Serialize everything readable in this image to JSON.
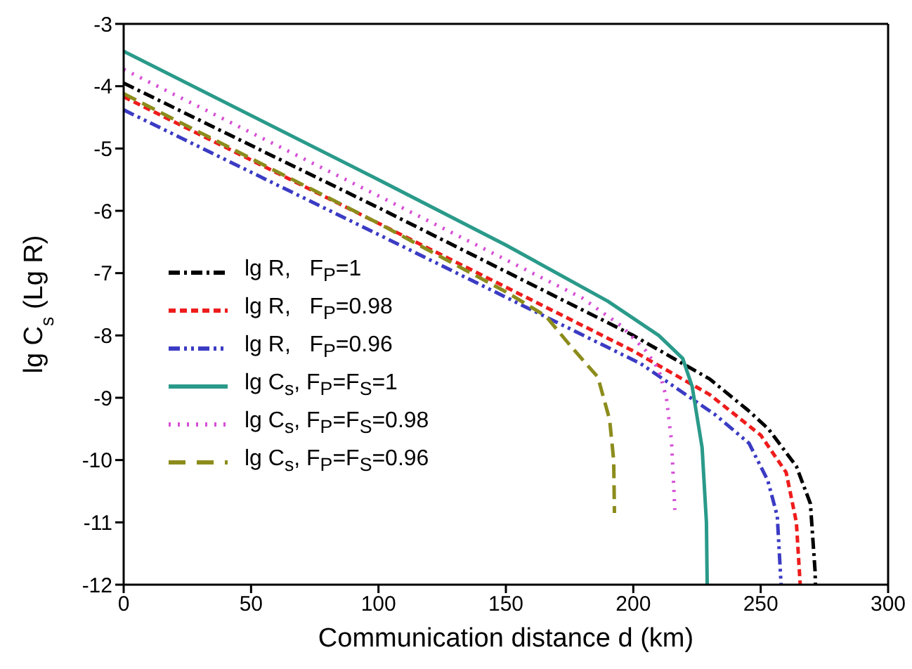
{
  "chart_data": {
    "type": "line",
    "xlabel": "Communication distance d (km)",
    "ylabel": "lg C$_{s}$ (Lg R)",
    "xlim": [
      0,
      300
    ],
    "xticks": [
      0,
      50,
      100,
      150,
      200,
      250,
      300
    ],
    "ylim": [
      -12,
      -3
    ],
    "yticks": [
      -12,
      -11,
      -10,
      -9,
      -8,
      -7,
      -6,
      -5,
      -4,
      -3
    ],
    "legend": "bottom left",
    "marker": "none",
    "series": [
      {
        "name": "lg R,   F$_{P}$=1",
        "color": "#000000",
        "line_style": "dashdot",
        "x": [
          0,
          100,
          200,
          230,
          245,
          253,
          264,
          269.5,
          271.3,
          271.5
        ],
        "values": [
          -3.95,
          -5.95,
          -8.0,
          -8.7,
          -9.2,
          -9.5,
          -10.1,
          -10.7,
          -11.76,
          -12
        ]
      },
      {
        "name": "lg R,   F$_{P}$=0.98",
        "color": "#ee1c1c",
        "line_style": "dashed",
        "x": [
          0,
          100,
          200,
          230,
          250,
          260,
          264,
          265.5
        ],
        "values": [
          -4.17,
          -6.2,
          -8.25,
          -8.95,
          -9.6,
          -10.2,
          -11,
          -12
        ]
      },
      {
        "name": "lg R,   F$_{P}$=0.96",
        "color": "#3b3bc4",
        "line_style": "dashdotdot",
        "x": [
          0,
          100,
          202.8,
          232.4,
          245.4,
          252.8,
          256.5,
          258
        ],
        "values": [
          -4.38,
          -6.38,
          -8.45,
          -9.28,
          -9.73,
          -10.33,
          -10.9,
          -12
        ]
      },
      {
        "name": "lg C$_{s}$, F$_{P}$=F$_{S}$=1",
        "color": "#2a9a8a",
        "line_style": "solid",
        "x": [
          0,
          100,
          150,
          190,
          210,
          219.4,
          223.1,
          227,
          228.7,
          229
        ],
        "values": [
          -3.44,
          -5.5,
          -6.55,
          -7.45,
          -8.0,
          -8.37,
          -8.82,
          -9.8,
          -11,
          -12
        ]
      },
      {
        "name": "lg C$_{s}$, F$_{P}$=F$_{S}$=0.98",
        "color": "#d64fd6",
        "line_style": "dotted",
        "x": [
          0,
          100,
          180,
          195.4,
          205,
          210,
          213,
          215,
          216.3
        ],
        "values": [
          -3.73,
          -5.76,
          -7.4,
          -7.85,
          -8.25,
          -8.55,
          -9.0,
          -9.7,
          -10.8
        ]
      },
      {
        "name": "lg C$_{s}$, F$_{P}$=F$_{S}$=0.96",
        "color": "#8c8c1c",
        "line_style": "longdash",
        "x": [
          0,
          100,
          150,
          165.7,
          175,
          186.1,
          190.7,
          192.3,
          192.6
        ],
        "values": [
          -4.12,
          -6.2,
          -7.3,
          -7.69,
          -8.15,
          -8.67,
          -9.35,
          -10.0,
          -10.85
        ]
      }
    ]
  }
}
